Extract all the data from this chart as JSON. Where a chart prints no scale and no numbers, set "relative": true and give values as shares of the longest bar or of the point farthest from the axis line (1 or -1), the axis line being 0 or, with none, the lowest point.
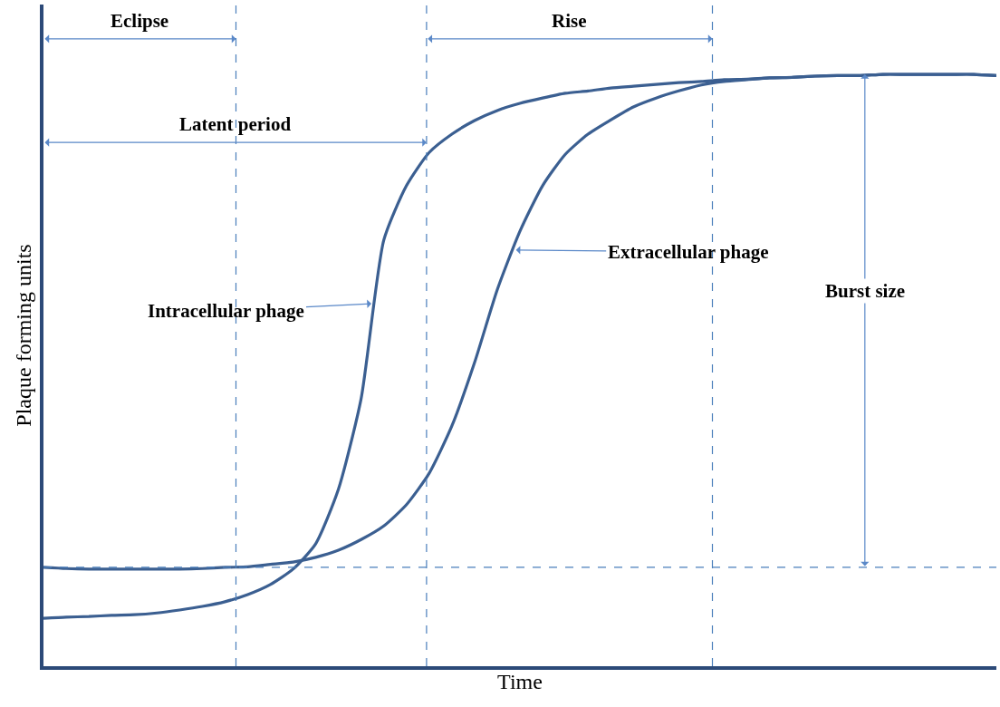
{
  "chart_data": {
    "type": "line",
    "relative": true,
    "xlabel": "Time",
    "ylabel": "Plaque forming units",
    "marker": "none",
    "line_style": "solid",
    "categories": [
      null,
      null,
      null,
      null,
      null,
      null,
      null,
      null,
      null,
      null,
      null,
      null,
      null,
      null,
      null,
      null,
      null,
      null,
      null,
      null,
      null,
      null,
      null,
      null,
      null,
      null,
      null,
      null,
      null,
      null,
      null,
      null,
      null,
      null,
      null,
      null,
      null,
      null,
      null,
      null,
      null,
      null,
      null
    ],
    "series": [
      {
        "color": "#3b5f91",
        "values": [
          0.081,
          0.083,
          0.084,
          0.086,
          0.087,
          0.09,
          0.095,
          0.101,
          0.109,
          0.121,
          0.138,
          0.164,
          0.207,
          0.299,
          0.452,
          0.72,
          0.812,
          0.868,
          0.899,
          0.922,
          0.939,
          0.951,
          0.96,
          0.968,
          0.972,
          0.977,
          0.98,
          0.983,
          0.986,
          0.988,
          0.991,
          0.992,
          0.994,
          0.995,
          0.997,
          0.998,
          0.998,
          1,
          1,
          1,
          1,
          1,
          0.998
        ]
      },
      {
        "color": "#3b5f91",
        "values": [
          0.167,
          0.165,
          0.164,
          0.164,
          0.164,
          0.164,
          0.164,
          0.165,
          0.167,
          0.168,
          0.172,
          0.176,
          0.184,
          0.196,
          0.214,
          0.237,
          0.273,
          0.326,
          0.406,
          0.513,
          0.636,
          0.735,
          0.812,
          0.865,
          0.899,
          0.923,
          0.945,
          0.96,
          0.972,
          0.982,
          0.988,
          0.991,
          0.994,
          0.995,
          0.997,
          0.998,
          0.998,
          1,
          1,
          1,
          1,
          1,
          0.998
        ]
      }
    ],
    "ref_lines": [
      {
        "axis": "x",
        "color": "#4a7ebb",
        "line_style": "dashed"
      },
      {
        "axis": "x",
        "color": "#4a7ebb",
        "line_style": "dashed"
      },
      {
        "axis": "x",
        "color": "#4a7ebb",
        "line_style": "dashed"
      },
      {
        "axis": "y",
        "value": 0.167,
        "color": "#4a7ebb",
        "line_style": "dashed"
      }
    ],
    "annotations": [
      "Eclipse",
      "Latent period",
      "Rise",
      "Burst size",
      "Intracellular phage",
      "Extracellular phage"
    ]
  }
}
